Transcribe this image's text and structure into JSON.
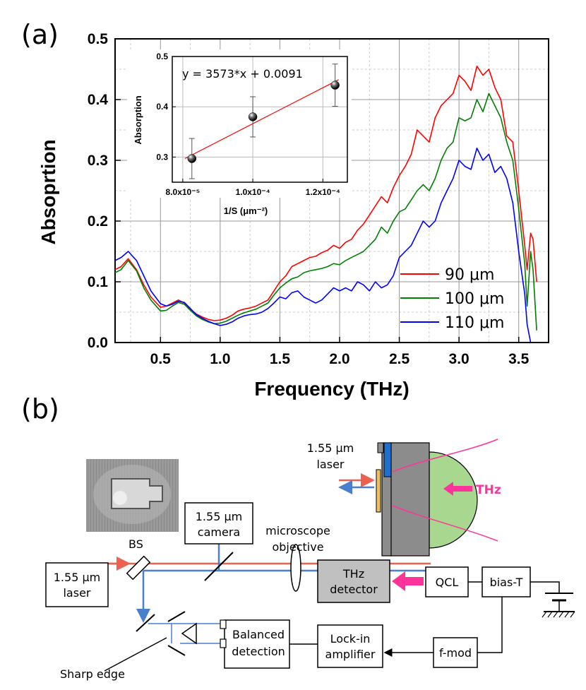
{
  "figure": {
    "panel_a_label": "(a)",
    "panel_b_label": "(b)"
  },
  "chart_data": [
    {
      "type": "line",
      "xlabel": "Frequency (THz)",
      "ylabel": "Absoprtion",
      "xlim": [
        0.12,
        3.75
      ],
      "ylim": [
        0.0,
        0.5
      ],
      "xticks": [
        0.5,
        1.0,
        1.5,
        2.0,
        2.5,
        3.0,
        3.5
      ],
      "xtick_labels": [
        "0.5",
        "1.0",
        "1.5",
        "2.0",
        "2.5",
        "3.0",
        "3.5"
      ],
      "yticks": [
        0.0,
        0.1,
        0.2,
        0.3,
        0.4,
        0.5
      ],
      "ytick_labels": [
        "0.0",
        "0.1",
        "0.2",
        "0.3",
        "0.4",
        "0.5"
      ],
      "grid": true,
      "legend_position": "bottom-right",
      "series": [
        {
          "name": "90 μm",
          "color": "#ff0000",
          "x": [
            0.12,
            0.17,
            0.23,
            0.3,
            0.36,
            0.42,
            0.5,
            0.55,
            0.6,
            0.65,
            0.7,
            0.75,
            0.8,
            0.85,
            0.9,
            0.95,
            1.0,
            1.05,
            1.1,
            1.15,
            1.2,
            1.25,
            1.3,
            1.35,
            1.4,
            1.45,
            1.5,
            1.55,
            1.6,
            1.65,
            1.7,
            1.75,
            1.8,
            1.85,
            1.9,
            1.95,
            2.0,
            2.05,
            2.1,
            2.15,
            2.2,
            2.25,
            2.3,
            2.35,
            2.4,
            2.45,
            2.5,
            2.55,
            2.6,
            2.65,
            2.7,
            2.75,
            2.8,
            2.85,
            2.9,
            2.95,
            3.0,
            3.05,
            3.1,
            3.15,
            3.2,
            3.25,
            3.3,
            3.35,
            3.4,
            3.45,
            3.5,
            3.55,
            3.57,
            3.6,
            3.62,
            3.65
          ],
          "y": [
            0.12,
            0.125,
            0.138,
            0.12,
            0.095,
            0.075,
            0.058,
            0.06,
            0.065,
            0.07,
            0.065,
            0.055,
            0.047,
            0.042,
            0.038,
            0.036,
            0.037,
            0.04,
            0.045,
            0.052,
            0.055,
            0.057,
            0.06,
            0.065,
            0.07,
            0.085,
            0.1,
            0.11,
            0.125,
            0.13,
            0.135,
            0.14,
            0.142,
            0.148,
            0.152,
            0.16,
            0.155,
            0.165,
            0.17,
            0.185,
            0.195,
            0.21,
            0.225,
            0.24,
            0.23,
            0.255,
            0.275,
            0.29,
            0.31,
            0.35,
            0.34,
            0.33,
            0.37,
            0.39,
            0.4,
            0.41,
            0.44,
            0.43,
            0.415,
            0.455,
            0.44,
            0.45,
            0.42,
            0.4,
            0.34,
            0.33,
            0.25,
            0.16,
            0.12,
            0.18,
            0.17,
            0.1
          ]
        },
        {
          "name": "100 μm",
          "color": "#008000",
          "x": [
            0.12,
            0.17,
            0.23,
            0.3,
            0.36,
            0.42,
            0.5,
            0.55,
            0.6,
            0.65,
            0.7,
            0.75,
            0.8,
            0.85,
            0.9,
            0.95,
            1.0,
            1.05,
            1.1,
            1.15,
            1.2,
            1.25,
            1.3,
            1.35,
            1.4,
            1.45,
            1.5,
            1.55,
            1.6,
            1.65,
            1.7,
            1.75,
            1.8,
            1.85,
            1.9,
            1.95,
            2.0,
            2.05,
            2.1,
            2.15,
            2.2,
            2.25,
            2.3,
            2.35,
            2.4,
            2.45,
            2.5,
            2.55,
            2.6,
            2.65,
            2.7,
            2.75,
            2.8,
            2.85,
            2.9,
            2.95,
            3.0,
            3.05,
            3.1,
            3.15,
            3.2,
            3.25,
            3.3,
            3.35,
            3.4,
            3.45,
            3.5,
            3.55,
            3.57,
            3.6,
            3.62,
            3.65
          ],
          "y": [
            0.115,
            0.12,
            0.135,
            0.118,
            0.09,
            0.07,
            0.052,
            0.053,
            0.06,
            0.066,
            0.063,
            0.053,
            0.044,
            0.038,
            0.034,
            0.031,
            0.032,
            0.035,
            0.04,
            0.045,
            0.049,
            0.052,
            0.055,
            0.06,
            0.065,
            0.078,
            0.09,
            0.098,
            0.105,
            0.108,
            0.115,
            0.118,
            0.12,
            0.122,
            0.125,
            0.13,
            0.128,
            0.135,
            0.14,
            0.145,
            0.15,
            0.16,
            0.17,
            0.19,
            0.18,
            0.2,
            0.215,
            0.22,
            0.235,
            0.25,
            0.26,
            0.25,
            0.27,
            0.3,
            0.32,
            0.33,
            0.37,
            0.365,
            0.37,
            0.4,
            0.38,
            0.41,
            0.39,
            0.37,
            0.33,
            0.3,
            0.22,
            0.13,
            0.06,
            0.15,
            0.12,
            0.02
          ]
        },
        {
          "name": "110 μm",
          "color": "#0000ff",
          "x": [
            0.12,
            0.17,
            0.23,
            0.3,
            0.36,
            0.42,
            0.5,
            0.55,
            0.6,
            0.65,
            0.7,
            0.75,
            0.8,
            0.85,
            0.9,
            0.95,
            1.0,
            1.05,
            1.1,
            1.15,
            1.2,
            1.25,
            1.3,
            1.35,
            1.4,
            1.45,
            1.5,
            1.55,
            1.6,
            1.65,
            1.7,
            1.75,
            1.8,
            1.85,
            1.9,
            1.95,
            2.0,
            2.05,
            2.1,
            2.15,
            2.2,
            2.25,
            2.3,
            2.35,
            2.4,
            2.45,
            2.5,
            2.55,
            2.6,
            2.65,
            2.7,
            2.75,
            2.8,
            2.85,
            2.9,
            2.95,
            3.0,
            3.05,
            3.1,
            3.15,
            3.2,
            3.25,
            3.3,
            3.35,
            3.4,
            3.45,
            3.5,
            3.55,
            3.57,
            3.6
          ],
          "y": [
            0.135,
            0.14,
            0.15,
            0.135,
            0.11,
            0.085,
            0.064,
            0.06,
            0.063,
            0.068,
            0.066,
            0.056,
            0.046,
            0.04,
            0.035,
            0.031,
            0.028,
            0.03,
            0.034,
            0.04,
            0.044,
            0.046,
            0.047,
            0.05,
            0.056,
            0.065,
            0.075,
            0.072,
            0.082,
            0.085,
            0.075,
            0.07,
            0.065,
            0.07,
            0.08,
            0.09,
            0.085,
            0.09,
            0.085,
            0.1,
            0.095,
            0.085,
            0.1,
            0.09,
            0.095,
            0.11,
            0.14,
            0.15,
            0.16,
            0.18,
            0.2,
            0.19,
            0.2,
            0.23,
            0.25,
            0.27,
            0.3,
            0.29,
            0.285,
            0.32,
            0.3,
            0.31,
            0.28,
            0.29,
            0.27,
            0.23,
            0.15,
            0.08,
            0.03,
            0.0
          ]
        }
      ]
    },
    {
      "type": "scatter",
      "inset": true,
      "xlabel": "1/S  (μm⁻²)",
      "ylabel": "Absorption",
      "equation": "y = 3573*x + 0.0091",
      "xlim": [
        7.7e-05,
        0.000127
      ],
      "ylim": [
        0.25,
        0.5
      ],
      "xticks": [
        8e-05,
        0.0001,
        0.00012
      ],
      "xtick_labels": [
        "8.0x10⁻⁵",
        "1.0x10⁻⁴",
        "1.2x10⁻⁴"
      ],
      "yticks": [
        0.3,
        0.4,
        0.5
      ],
      "ytick_labels": [
        "0.3",
        "0.4",
        "0.5"
      ],
      "grid": true,
      "points": [
        {
          "x": 8.26e-05,
          "y": 0.297,
          "err": 0.04
        },
        {
          "x": 0.0001,
          "y": 0.38,
          "err": 0.04
        },
        {
          "x": 0.0001235,
          "y": 0.443,
          "err": 0.042
        }
      ],
      "fit": {
        "slope": 3573,
        "intercept": 0.0091,
        "x_range": [
          8.06e-05,
          0.0001245
        ],
        "color": "#ff0000"
      }
    }
  ],
  "diagram": {
    "laser_label_1": "1.55 μm",
    "laser_label_2": "laser",
    "bs_label": "BS",
    "camera_label_1": "1.55 μm",
    "camera_label_2": "camera",
    "objective_label_1": "microscope",
    "objective_label_2": "objective",
    "detector_label_1": "THz",
    "detector_label_2": "detector",
    "qcl_label": "QCL",
    "biast_label": "bias-T",
    "balanced_label_1": "Balanced",
    "balanced_label_2": "detection",
    "lockin_label_1": "Lock-in",
    "lockin_label_2": "amplifier",
    "fmod_label": "f-mod",
    "sharp_edge_label": "Sharp edge",
    "detail_laser_label_1": "1.55 μm",
    "detail_laser_label_2": "laser",
    "detail_thz_label": "THz",
    "colors": {
      "red_beam": "#ee6050",
      "blue_beam": "#4a7fd0",
      "thz_arrow": "#ff3399",
      "detector_fill": "#c0c0c0",
      "lens_fill": "#a8d890"
    }
  }
}
